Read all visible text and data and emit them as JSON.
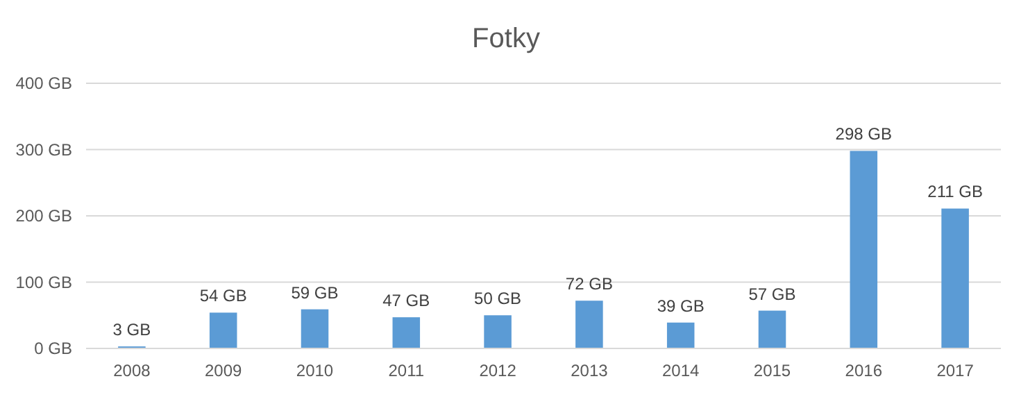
{
  "chart_data": {
    "type": "bar",
    "title": "Fotky",
    "categories": [
      "2008",
      "2009",
      "2010",
      "2011",
      "2012",
      "2013",
      "2014",
      "2015",
      "2016",
      "2017"
    ],
    "values": [
      3,
      54,
      59,
      47,
      50,
      72,
      39,
      57,
      298,
      211
    ],
    "value_labels": [
      "3 GB",
      "54 GB",
      "59 GB",
      "47 GB",
      "50 GB",
      "72 GB",
      "39 GB",
      "57 GB",
      "298 GB",
      "211 GB"
    ],
    "color": "#5b9bd5",
    "ylim": [
      0,
      400
    ],
    "yticks": [
      {
        "value": 0,
        "label": "0 GB"
      },
      {
        "value": 100,
        "label": "100 GB"
      },
      {
        "value": 200,
        "label": "200 GB"
      },
      {
        "value": 300,
        "label": "300 GB"
      },
      {
        "value": 400,
        "label": "400 GB"
      }
    ],
    "grid": "y"
  }
}
